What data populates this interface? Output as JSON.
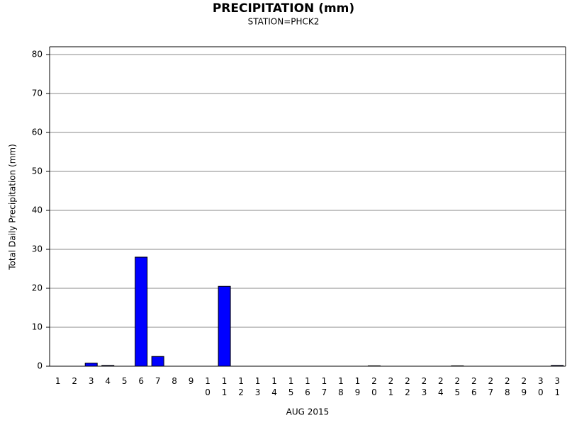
{
  "chart_data": {
    "type": "bar",
    "title": "PRECIPITATION (mm)",
    "subtitle": "STATION=PHCK2",
    "y_label": "Total Daily Precipitation (mm)",
    "x_label": "AUG 2015",
    "categories": [
      "1",
      "2",
      "3",
      "4",
      "5",
      "6",
      "7",
      "8",
      "9",
      "10",
      "11",
      "12",
      "13",
      "14",
      "15",
      "16",
      "17",
      "18",
      "19",
      "20",
      "21",
      "22",
      "23",
      "24",
      "25",
      "26",
      "27",
      "28",
      "29",
      "30",
      "31"
    ],
    "values": [
      0,
      0,
      0.8,
      0.2,
      0,
      28,
      2.5,
      0,
      0,
      0,
      20.5,
      0,
      0,
      0,
      0,
      0,
      0,
      0,
      0,
      0.1,
      0,
      0,
      0,
      0,
      0.1,
      0,
      0,
      0,
      0,
      0,
      0.2
    ],
    "color": "#0000ff",
    "ylim": [
      0,
      82
    ],
    "yticks": [
      0,
      10,
      20,
      30,
      40,
      50,
      60,
      70,
      80
    ],
    "grid": true
  }
}
